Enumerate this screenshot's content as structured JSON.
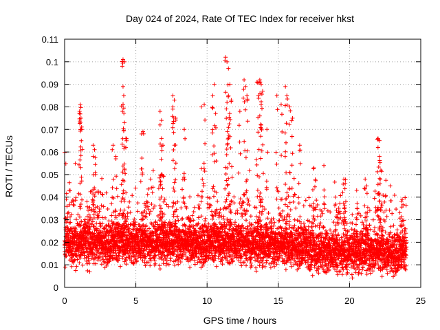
{
  "chart_data": {
    "type": "scatter",
    "title": "Day 024 of 2024, Rate Of TEC Index for receiver hkst",
    "xlabel": "GPS time / hours",
    "ylabel": "ROTI / TECUs",
    "xlim": [
      0,
      25
    ],
    "ylim": [
      0,
      0.11
    ],
    "x_ticks": [
      "0",
      "5",
      "10",
      "15",
      "20",
      "25"
    ],
    "y_ticks": [
      "0",
      "0.01",
      "0.02",
      "0.03",
      "0.04",
      "0.05",
      "0.06",
      "0.07",
      "0.08",
      "0.09",
      "0.1",
      "0.11"
    ],
    "grid": true,
    "marker": "+",
    "color": "#ff0000",
    "x_range_of_data": [
      0,
      24
    ],
    "outliers": [
      [
        1.1,
        0.081
      ],
      [
        1.05,
        0.078
      ],
      [
        1.15,
        0.075
      ],
      [
        1.1,
        0.073
      ],
      [
        1.2,
        0.07
      ],
      [
        2.0,
        0.063
      ],
      [
        2.1,
        0.061
      ],
      [
        3.4,
        0.063
      ],
      [
        3.6,
        0.058
      ],
      [
        4.1,
        0.101
      ],
      [
        4.2,
        0.1
      ],
      [
        4.05,
        0.098
      ],
      [
        4.1,
        0.089
      ],
      [
        4.15,
        0.085
      ],
      [
        4.2,
        0.073
      ],
      [
        4.3,
        0.066
      ],
      [
        5.5,
        0.069
      ],
      [
        5.4,
        0.068
      ],
      [
        6.7,
        0.078
      ],
      [
        6.8,
        0.074
      ],
      [
        6.7,
        0.072
      ],
      [
        6.8,
        0.066
      ],
      [
        6.9,
        0.063
      ],
      [
        7.6,
        0.085
      ],
      [
        7.7,
        0.083
      ],
      [
        7.6,
        0.08
      ],
      [
        7.8,
        0.075
      ],
      [
        8.4,
        0.07
      ],
      [
        9.6,
        0.08
      ],
      [
        9.8,
        0.081
      ],
      [
        10.5,
        0.09
      ],
      [
        10.4,
        0.085
      ],
      [
        10.6,
        0.077
      ],
      [
        11.3,
        0.102
      ],
      [
        11.4,
        0.1
      ],
      [
        11.5,
        0.097
      ],
      [
        11.6,
        0.09
      ],
      [
        11.5,
        0.085
      ],
      [
        11.7,
        0.083
      ],
      [
        11.4,
        0.082
      ],
      [
        12.3,
        0.078
      ],
      [
        12.6,
        0.092
      ],
      [
        12.7,
        0.089
      ],
      [
        12.8,
        0.085
      ],
      [
        13.5,
        0.091
      ],
      [
        13.7,
        0.092
      ],
      [
        13.8,
        0.09
      ],
      [
        13.9,
        0.087
      ],
      [
        13.6,
        0.085
      ],
      [
        13.8,
        0.081
      ],
      [
        13.7,
        0.076
      ],
      [
        14.2,
        0.07
      ],
      [
        14.9,
        0.085
      ],
      [
        15.2,
        0.081
      ],
      [
        15.5,
        0.089
      ],
      [
        15.6,
        0.085
      ],
      [
        15.8,
        0.08
      ],
      [
        16.0,
        0.075
      ],
      [
        16.5,
        0.063
      ],
      [
        17.5,
        0.053
      ],
      [
        18.2,
        0.054
      ],
      [
        19.0,
        0.04
      ],
      [
        19.6,
        0.048
      ],
      [
        19.7,
        0.046
      ],
      [
        20.5,
        0.043
      ],
      [
        21.1,
        0.048
      ],
      [
        21.2,
        0.045
      ],
      [
        22.0,
        0.066
      ],
      [
        22.1,
        0.065
      ],
      [
        22.0,
        0.062
      ],
      [
        22.1,
        0.058
      ],
      [
        22.2,
        0.052
      ],
      [
        23.7,
        0.039
      ]
    ]
  }
}
